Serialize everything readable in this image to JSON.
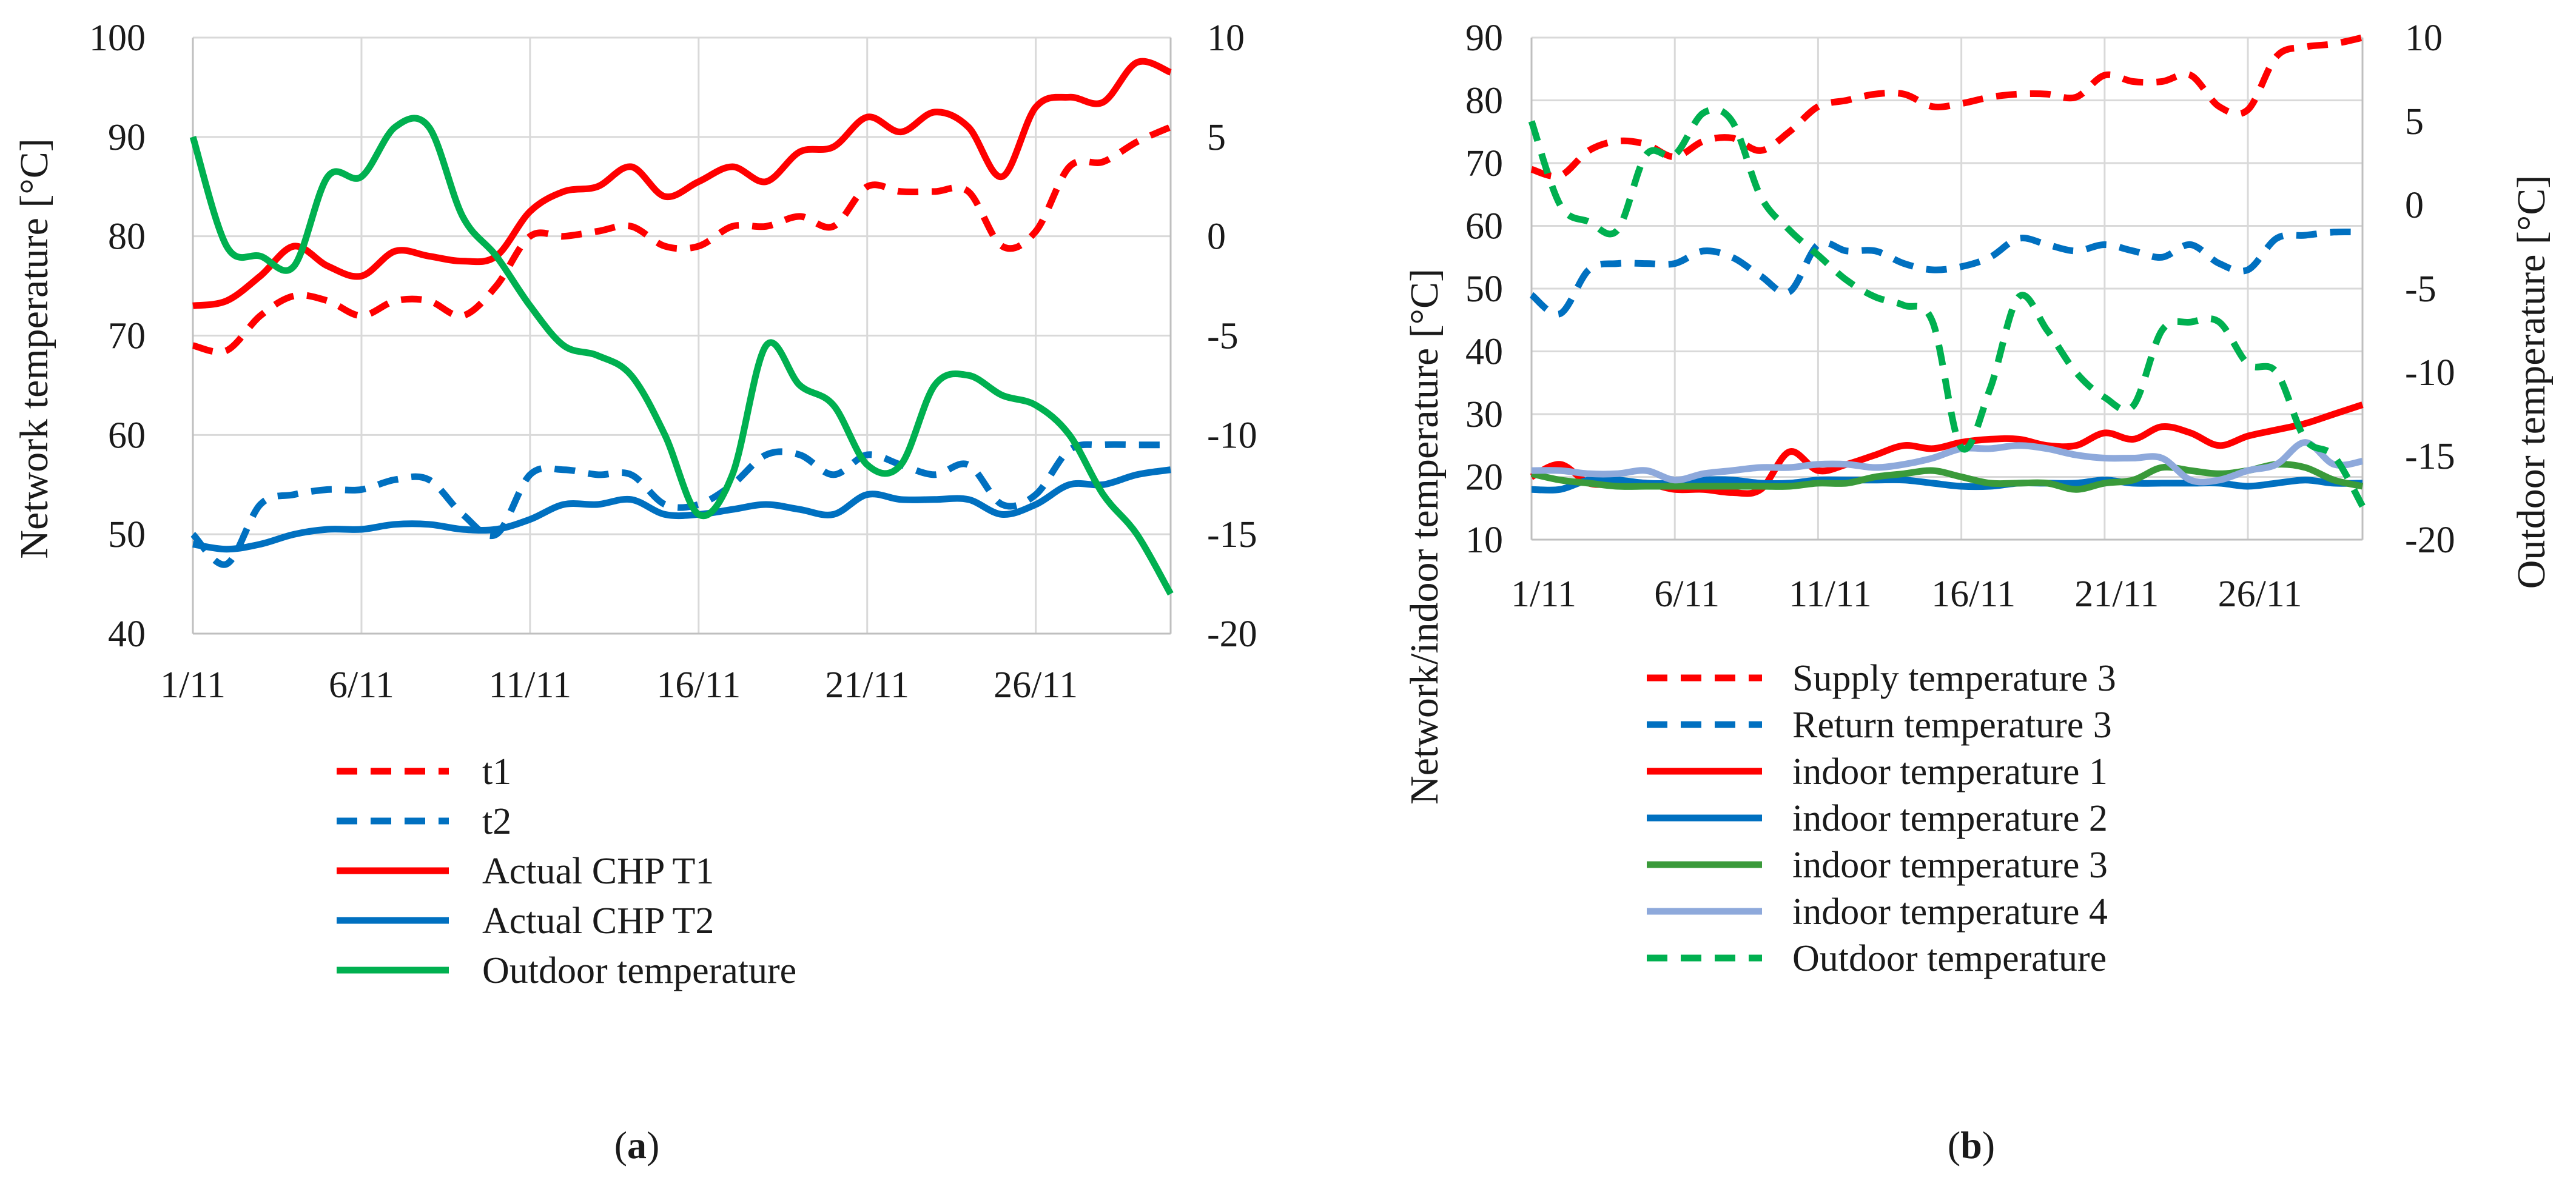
{
  "chart_data": [
    {
      "panel": "a",
      "type": "line",
      "caption": {
        "open": "(",
        "letter": "a",
        "close": ")"
      },
      "ylabel_left": "Network temperature [°C]",
      "ylabel_right": "",
      "ylim_left": [
        40,
        100
      ],
      "yticks_left": [
        40,
        50,
        60,
        70,
        80,
        90,
        100
      ],
      "ylim_right": [
        -20,
        10
      ],
      "yticks_right": [
        -20,
        -15,
        -10,
        -5,
        0,
        5,
        10
      ],
      "xlim": [
        1,
        30
      ],
      "xticks": [
        1,
        6,
        11,
        16,
        21,
        26
      ],
      "xtick_labels": [
        "1/11",
        "6/11",
        "11/11",
        "16/11",
        "21/11",
        "26/11"
      ],
      "legend_position": "bottom",
      "series": [
        {
          "name": "t1",
          "color": "#ff0000",
          "style": "dashed",
          "axis": "left",
          "x": [
            1,
            2,
            3,
            4,
            5,
            6,
            7,
            8,
            9,
            10,
            11,
            12,
            13,
            14,
            15,
            16,
            17,
            18,
            19,
            20,
            21,
            22,
            23,
            24,
            25,
            26,
            27,
            28,
            29,
            30
          ],
          "y": [
            69,
            68.5,
            72,
            74,
            73.5,
            72,
            73.5,
            73.5,
            72,
            75,
            80,
            80,
            80.5,
            81,
            79,
            79,
            81,
            81,
            82,
            81,
            85,
            84.5,
            84.5,
            84.5,
            79,
            80.5,
            87,
            87.5,
            89.5,
            91
          ]
        },
        {
          "name": "t2",
          "color": "#0070c0",
          "style": "dashed",
          "axis": "left",
          "x": [
            1,
            2,
            3,
            4,
            5,
            6,
            7,
            8,
            9,
            10,
            11,
            12,
            13,
            14,
            15,
            16,
            17,
            18,
            19,
            20,
            21,
            22,
            23,
            24,
            25,
            26,
            27,
            28,
            29,
            30
          ],
          "y": [
            50,
            47,
            53,
            54,
            54.5,
            54.5,
            55.5,
            55.5,
            52,
            50,
            56,
            56.5,
            56,
            56,
            53,
            53,
            55,
            58,
            58,
            56,
            58,
            57,
            56,
            57,
            53,
            54,
            58.5,
            59,
            59,
            59
          ]
        },
        {
          "name": "Actual CHP T1",
          "color": "#ff0000",
          "style": "solid",
          "axis": "left",
          "x": [
            1,
            2,
            3,
            4,
            5,
            6,
            7,
            8,
            9,
            10,
            11,
            12,
            13,
            14,
            15,
            16,
            17,
            18,
            19,
            20,
            21,
            22,
            23,
            24,
            25,
            26,
            27,
            28,
            29,
            30
          ],
          "y": [
            73,
            73.5,
            76,
            79,
            77,
            76,
            78.5,
            78,
            77.5,
            78,
            82.5,
            84.5,
            85,
            87,
            84,
            85.5,
            87,
            85.5,
            88.5,
            89,
            92,
            90.5,
            92.5,
            91,
            86,
            93,
            94,
            93.5,
            97.5,
            96.5
          ]
        },
        {
          "name": "Actual CHP T2",
          "color": "#0070c0",
          "style": "solid",
          "axis": "left",
          "x": [
            1,
            2,
            3,
            4,
            5,
            6,
            7,
            8,
            9,
            10,
            11,
            12,
            13,
            14,
            15,
            16,
            17,
            18,
            19,
            20,
            21,
            22,
            23,
            24,
            25,
            26,
            27,
            28,
            29,
            30
          ],
          "y": [
            49,
            48.5,
            49,
            50,
            50.5,
            50.5,
            51,
            51,
            50.5,
            50.5,
            51.5,
            53,
            53,
            53.5,
            52,
            52,
            52.5,
            53,
            52.5,
            52,
            54,
            53.5,
            53.5,
            53.5,
            52,
            53,
            55,
            55,
            56,
            56.5
          ]
        },
        {
          "name": "Outdoor temperature",
          "color": "#00b050",
          "style": "solid",
          "axis": "right",
          "x": [
            1,
            2,
            3,
            4,
            5,
            6,
            7,
            8,
            9,
            10,
            11,
            12,
            13,
            14,
            15,
            16,
            17,
            18,
            19,
            20,
            21,
            22,
            23,
            24,
            25,
            26,
            27,
            28,
            29,
            30
          ],
          "y": [
            5,
            -0.5,
            -1,
            -1.5,
            3,
            3,
            5.5,
            5.5,
            1,
            -1,
            -3.5,
            -5.5,
            -6,
            -7,
            -10,
            -14,
            -12,
            -5.5,
            -7.5,
            -8.5,
            -11.5,
            -11.5,
            -7.5,
            -7,
            -8,
            -8.5,
            -10,
            -13,
            -15,
            -18
          ]
        }
      ]
    },
    {
      "panel": "b",
      "type": "line",
      "caption": {
        "open": "(",
        "letter": "b",
        "close": ")"
      },
      "ylabel_left": "Network/indoor temperature [°C]",
      "ylabel_right": "Outdoor temperature [°C]",
      "ylim_left": [
        10,
        90
      ],
      "yticks_left": [
        10,
        20,
        30,
        40,
        50,
        60,
        70,
        80,
        90
      ],
      "ylim_right": [
        -20,
        10
      ],
      "yticks_right": [
        -20,
        -15,
        -10,
        -5,
        0,
        5,
        10
      ],
      "xlim": [
        1,
        30
      ],
      "xticks": [
        1,
        6,
        11,
        16,
        21,
        26
      ],
      "xtick_labels": [
        "1/11",
        "6/11",
        "11/11",
        "16/11",
        "21/11",
        "26/11"
      ],
      "legend_position": "bottom",
      "series": [
        {
          "name": "Supply temperature 3",
          "color": "#ff0000",
          "style": "dashed",
          "axis": "left",
          "x": [
            1,
            2,
            3,
            4,
            5,
            6,
            7,
            8,
            9,
            10,
            11,
            12,
            13,
            14,
            15,
            16,
            17,
            18,
            19,
            20,
            21,
            22,
            23,
            24,
            25,
            26,
            27,
            28,
            29,
            30
          ],
          "y": [
            69,
            68,
            72,
            73.5,
            73,
            71,
            73.5,
            74,
            72,
            75,
            79,
            80,
            81,
            81,
            79,
            79.5,
            80.5,
            81,
            81,
            80.5,
            84,
            83,
            83,
            84,
            79,
            78.5,
            87,
            88.5,
            89,
            90
          ]
        },
        {
          "name": "Return temperature 3",
          "color": "#0070c0",
          "style": "dashed",
          "axis": "left",
          "x": [
            1,
            2,
            3,
            4,
            5,
            6,
            7,
            8,
            9,
            10,
            11,
            12,
            13,
            14,
            15,
            16,
            17,
            18,
            19,
            20,
            21,
            22,
            23,
            24,
            25,
            26,
            27,
            28,
            29,
            30
          ],
          "y": [
            49,
            46,
            53,
            54,
            54,
            54,
            56,
            55,
            52,
            49.5,
            57,
            56,
            56,
            54,
            53,
            53.5,
            55,
            58,
            57,
            56,
            57,
            56,
            55,
            57,
            54,
            53,
            58,
            58.5,
            59,
            59
          ]
        },
        {
          "name": "indoor temperature 1",
          "color": "#ff0000",
          "style": "solid",
          "axis": "left",
          "x": [
            1,
            2,
            3,
            4,
            5,
            6,
            7,
            8,
            9,
            10,
            11,
            12,
            13,
            14,
            15,
            16,
            17,
            18,
            19,
            20,
            21,
            22,
            23,
            24,
            25,
            26,
            27,
            28,
            29,
            30
          ],
          "y": [
            20,
            22,
            19,
            19,
            19,
            18,
            18,
            17.5,
            18,
            24,
            21,
            22,
            23.5,
            25,
            24.5,
            25.5,
            26,
            26,
            25,
            25,
            27,
            26,
            28,
            27,
            25,
            26.5,
            27.5,
            28.5,
            30,
            31.5
          ]
        },
        {
          "name": "indoor temperature 2",
          "color": "#0070c0",
          "style": "solid",
          "axis": "left",
          "x": [
            1,
            2,
            3,
            4,
            5,
            6,
            7,
            8,
            9,
            10,
            11,
            12,
            13,
            14,
            15,
            16,
            17,
            18,
            19,
            20,
            21,
            22,
            23,
            24,
            25,
            26,
            27,
            28,
            29,
            30
          ],
          "y": [
            18,
            18,
            19.5,
            19.5,
            19,
            19,
            19.5,
            19.5,
            19,
            19,
            19.5,
            19.5,
            19.5,
            19.5,
            19,
            18.5,
            18.5,
            19,
            19,
            19,
            19.5,
            19,
            19,
            19,
            19,
            18.5,
            19,
            19.5,
            19,
            19
          ]
        },
        {
          "name": "indoor temperature 3",
          "color": "#3a9a3a",
          "style": "solid",
          "axis": "left",
          "x": [
            1,
            2,
            3,
            4,
            5,
            6,
            7,
            8,
            9,
            10,
            11,
            12,
            13,
            14,
            15,
            16,
            17,
            18,
            19,
            20,
            21,
            22,
            23,
            24,
            25,
            26,
            27,
            28,
            29,
            30
          ],
          "y": [
            20.5,
            19.5,
            19,
            18.5,
            18.5,
            18.5,
            18.5,
            18.5,
            18.5,
            18.5,
            19,
            19,
            20,
            20.5,
            21,
            20,
            19,
            19,
            19,
            18,
            19,
            19.5,
            21.5,
            21,
            20.5,
            21,
            22,
            21.5,
            19.5,
            18.5
          ]
        },
        {
          "name": "indoor temperature 4",
          "color": "#8ea9db",
          "style": "solid",
          "axis": "left",
          "x": [
            1,
            2,
            3,
            4,
            5,
            6,
            7,
            8,
            9,
            10,
            11,
            12,
            13,
            14,
            15,
            16,
            17,
            18,
            19,
            20,
            21,
            22,
            23,
            24,
            25,
            26,
            27,
            28,
            29,
            30
          ],
          "y": [
            21,
            21,
            20.5,
            20.5,
            21,
            19.5,
            20.5,
            21,
            21.5,
            21.5,
            22,
            22,
            21.5,
            22,
            23,
            24.5,
            24.5,
            25,
            24.5,
            23.5,
            23,
            23,
            23,
            19.5,
            19.5,
            21,
            22,
            25.5,
            22,
            22.5
          ]
        },
        {
          "name": "Outdoor temperature",
          "color": "#00b050",
          "style": "dashed",
          "axis": "right",
          "x": [
            1,
            2,
            3,
            4,
            5,
            6,
            7,
            8,
            9,
            10,
            11,
            12,
            13,
            14,
            15,
            16,
            17,
            18,
            19,
            20,
            21,
            22,
            23,
            24,
            25,
            26,
            27,
            28,
            29,
            30
          ],
          "y": [
            5,
            0,
            -1,
            -1.5,
            3,
            3,
            5.5,
            5,
            0.5,
            -1.5,
            -3,
            -4.5,
            -5.5,
            -6,
            -7,
            -14.5,
            -11,
            -5.5,
            -7.5,
            -10,
            -11.5,
            -12,
            -7.5,
            -7,
            -7,
            -9.5,
            -10,
            -14,
            -15,
            -18
          ]
        }
      ]
    }
  ]
}
